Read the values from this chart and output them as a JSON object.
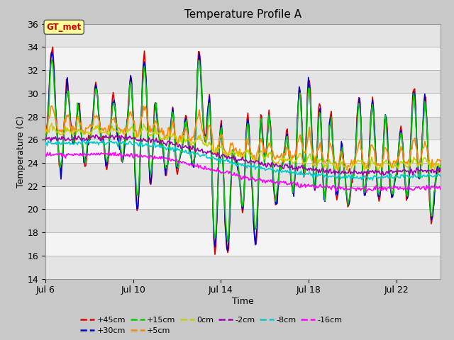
{
  "title": "Temperature Profile A",
  "xlabel": "Time",
  "ylabel": "Temperature (C)",
  "ylim": [
    14,
    36
  ],
  "yticks": [
    14,
    16,
    18,
    20,
    22,
    24,
    26,
    28,
    30,
    32,
    34,
    36
  ],
  "xlim_days": [
    6,
    24
  ],
  "xtick_labels": [
    "Jul 6",
    "Jul 10",
    "Jul 14",
    "Jul 18",
    "Jul 22"
  ],
  "xtick_positions": [
    6,
    10,
    14,
    18,
    22
  ],
  "annotation_text": "GT_met",
  "annotation_color": "#cc0000",
  "annotation_bg": "#ffff99",
  "fig_bg": "#c8c8c8",
  "plot_bg_light": "#f4f4f4",
  "plot_bg_dark": "#e4e4e4",
  "grid_color": "#bbbbbb",
  "series": [
    {
      "label": "+45cm",
      "color": "#dd0000",
      "lw": 1.2
    },
    {
      "label": "+30cm",
      "color": "#0000cc",
      "lw": 1.2
    },
    {
      "label": "+15cm",
      "color": "#00cc00",
      "lw": 1.2
    },
    {
      "label": "+5cm",
      "color": "#ff8800",
      "lw": 1.2
    },
    {
      "label": "0cm",
      "color": "#cccc00",
      "lw": 1.2
    },
    {
      "label": "-2cm",
      "color": "#9900aa",
      "lw": 1.2
    },
    {
      "label": "-8cm",
      "color": "#00cccc",
      "lw": 1.2
    },
    {
      "label": "-16cm",
      "color": "#ff00ff",
      "lw": 1.2
    }
  ]
}
